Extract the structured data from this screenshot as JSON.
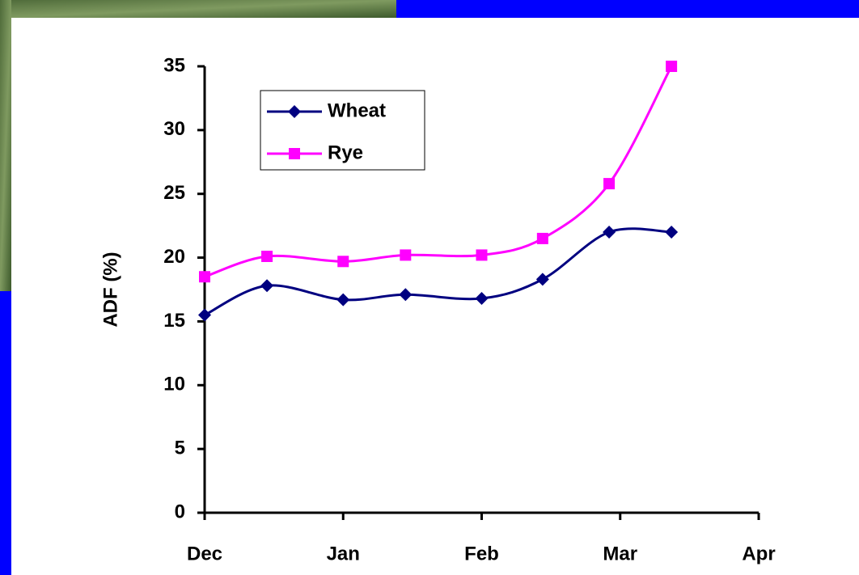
{
  "chart_data": {
    "type": "line",
    "y_label": "ADF (%)",
    "series": [
      {
        "name": "Wheat",
        "color": "#000080",
        "marker": "diamond",
        "x": [
          0,
          0.45,
          1.0,
          1.45,
          2.0,
          2.44,
          2.92,
          3.37
        ],
        "values": [
          15.5,
          17.8,
          16.7,
          17.1,
          16.8,
          18.3,
          22.0,
          22.0
        ]
      },
      {
        "name": "Rye",
        "color": "#ff00ff",
        "marker": "square",
        "x": [
          0,
          0.45,
          1.0,
          1.45,
          2.0,
          2.44,
          2.92,
          3.37
        ],
        "values": [
          18.5,
          20.1,
          19.7,
          20.2,
          20.2,
          21.5,
          25.8,
          35.0
        ]
      }
    ],
    "xlim": [
      0,
      4
    ],
    "xticks": [
      {
        "value": 0,
        "label": "Dec"
      },
      {
        "value": 1,
        "label": "Jan"
      },
      {
        "value": 2,
        "label": "Feb"
      },
      {
        "value": 3,
        "label": "Mar"
      },
      {
        "value": 4,
        "label": "Apr"
      }
    ],
    "ylim": [
      0,
      35
    ],
    "yticks": [
      0,
      5,
      10,
      15,
      20,
      25,
      30,
      35
    ],
    "smooth": true,
    "legend": "top-left"
  }
}
